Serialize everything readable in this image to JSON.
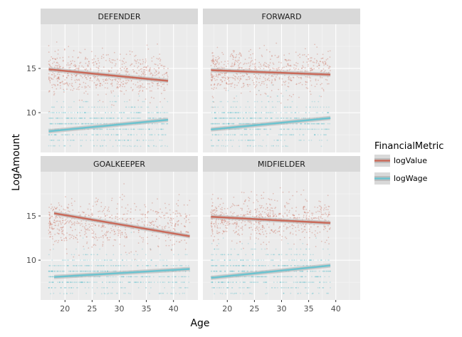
{
  "chart_data": {
    "type": "scatter",
    "xlabel": "Age",
    "ylabel": "LogAmount",
    "xlim": [
      15.5,
      44.5
    ],
    "ylim": [
      5.5,
      20.0
    ],
    "x_ticks": [
      20,
      25,
      30,
      35,
      40
    ],
    "y_ticks": [
      10,
      15
    ],
    "legend": {
      "title": "FinancialMetric",
      "position": "right",
      "entries": [
        {
          "label": "logValue",
          "color": "#c96a5a"
        },
        {
          "label": "logWage",
          "color": "#6cc3cf"
        }
      ]
    },
    "panels": [
      {
        "title": "DEFENDER",
        "series": [
          {
            "name": "logValue",
            "x_range": [
              17,
              39
            ],
            "y_center": 14.3,
            "y_spread": 1.2,
            "fit": [
              [
                17,
                14.9
              ],
              [
                39,
                13.6
              ]
            ]
          },
          {
            "name": "logWage",
            "x_range": [
              17,
              39
            ],
            "y_center": 8.6,
            "y_spread": 1.3,
            "fit": [
              [
                17,
                7.9
              ],
              [
                39,
                9.2
              ]
            ]
          }
        ]
      },
      {
        "title": "FORWARD",
        "series": [
          {
            "name": "logValue",
            "x_range": [
              17,
              39
            ],
            "y_center": 14.6,
            "y_spread": 1.2,
            "fit": [
              [
                17,
                14.8
              ],
              [
                39,
                14.3
              ]
            ]
          },
          {
            "name": "logWage",
            "x_range": [
              17,
              39
            ],
            "y_center": 8.8,
            "y_spread": 1.3,
            "fit": [
              [
                17,
                8.1
              ],
              [
                39,
                9.4
              ]
            ]
          }
        ]
      },
      {
        "title": "GOALKEEPER",
        "series": [
          {
            "name": "logValue",
            "x_range": [
              17,
              43
            ],
            "y_center": 14.0,
            "y_spread": 1.3,
            "fit": [
              [
                18,
                15.3
              ],
              [
                43,
                12.7
              ]
            ]
          },
          {
            "name": "logWage",
            "x_range": [
              17,
              43
            ],
            "y_center": 8.4,
            "y_spread": 1.2,
            "fit": [
              [
                18,
                8.1
              ],
              [
                43,
                9.0
              ]
            ]
          }
        ]
      },
      {
        "title": "MIDFIELDER",
        "series": [
          {
            "name": "logValue",
            "x_range": [
              17,
              39
            ],
            "y_center": 14.6,
            "y_spread": 1.2,
            "fit": [
              [
                17,
                14.9
              ],
              [
                39,
                14.2
              ]
            ]
          },
          {
            "name": "logWage",
            "x_range": [
              17,
              39
            ],
            "y_center": 8.7,
            "y_spread": 1.3,
            "fit": [
              [
                17,
                8.0
              ],
              [
                39,
                9.4
              ]
            ]
          }
        ]
      }
    ],
    "colors": {
      "panel_bg": "#ebebeb",
      "strip_bg": "#d9d9d9",
      "grid_major": "#ffffff",
      "ribbon": "#bdbdbd"
    }
  }
}
